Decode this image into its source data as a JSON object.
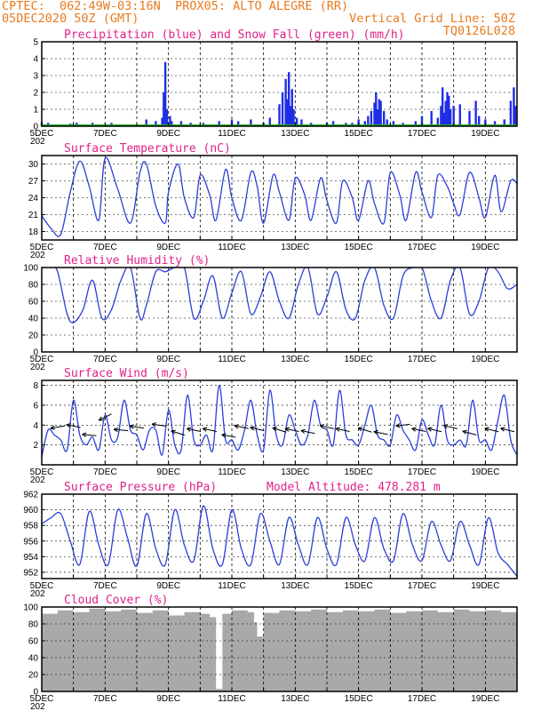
{
  "header": {
    "line1_left": "CPTEC:  062:49W-03:16N  PROX05: ALTO ALEGRE (RR)",
    "line2_left": "05DEC2020 50Z (GMT)",
    "line2_right": "Vertical Grid Line: 50Z",
    "line3_right": "TQ0126L028"
  },
  "colors": {
    "precip": "#1f2ee6",
    "snow": "#20b020",
    "line": "#2a3fd8",
    "cloud": "#a9a9a9",
    "title": "#e0218a",
    "header": "#e87a1e"
  },
  "x_axis": {
    "days": [
      5,
      20
    ],
    "labels": [
      "5DEC",
      "7DEC",
      "9DEC",
      "11DEC",
      "13DEC",
      "15DEC",
      "17DEC",
      "19DEC"
    ],
    "label_days": [
      5,
      7,
      9,
      11,
      13,
      15,
      17,
      19
    ],
    "year_stub": "202"
  },
  "chart_data": [
    {
      "id": "precip",
      "type": "bar",
      "title": "Precipitation (blue) and Snow Fall (green) (mm/h)",
      "ylim": [
        0,
        5
      ],
      "yticks": [
        "0",
        "1",
        "2",
        "3",
        "4",
        "5"
      ],
      "series": [
        {
          "name": "Precipitation (blue)",
          "x": [
            5.0,
            5.2,
            5.9,
            6.1,
            6.6,
            7.2,
            7.8,
            8.3,
            8.6,
            8.8,
            8.85,
            8.9,
            8.95,
            9.05,
            9.1,
            9.4,
            9.7,
            10.1,
            10.6,
            11.0,
            11.2,
            11.6,
            12.0,
            12.2,
            12.5,
            12.6,
            12.7,
            12.75,
            12.8,
            12.85,
            12.9,
            12.95,
            13.05,
            13.2,
            13.5,
            14.0,
            14.2,
            14.6,
            14.8,
            15.0,
            15.2,
            15.3,
            15.4,
            15.5,
            15.55,
            15.6,
            15.65,
            15.7,
            15.8,
            15.9,
            16.1,
            16.4,
            16.8,
            17.0,
            17.3,
            17.5,
            17.6,
            17.65,
            17.7,
            17.75,
            17.8,
            17.85,
            17.9,
            18.0,
            18.2,
            18.5,
            18.7,
            18.8,
            19.0,
            19.3,
            19.6,
            19.8,
            19.9,
            19.95
          ],
          "values": [
            0.25,
            0.2,
            0.15,
            0.2,
            0.2,
            0.2,
            0.1,
            0.4,
            0.3,
            0.5,
            2.0,
            3.8,
            1.0,
            0.6,
            0.3,
            0.3,
            0.2,
            0.2,
            0.3,
            0.4,
            0.3,
            0.4,
            0.2,
            0.5,
            1.3,
            2.0,
            2.8,
            1.6,
            3.2,
            1.2,
            2.2,
            1.0,
            0.5,
            0.4,
            0.2,
            0.2,
            0.3,
            0.2,
            0.2,
            0.4,
            0.3,
            0.6,
            0.9,
            1.4,
            2.0,
            1.0,
            1.6,
            1.5,
            0.9,
            0.4,
            0.3,
            0.2,
            0.3,
            0.6,
            0.9,
            0.5,
            1.2,
            2.3,
            0.8,
            1.5,
            2.0,
            1.8,
            1.0,
            1.2,
            1.3,
            0.9,
            1.5,
            0.6,
            0.4,
            0.3,
            0.4,
            1.5,
            2.3,
            1.2
          ]
        },
        {
          "name": "Snow Fall (green)",
          "x": [
            5,
            20
          ],
          "values": [
            0,
            0
          ]
        }
      ]
    },
    {
      "id": "temp",
      "type": "line",
      "title": "Surface Temperature (nC)",
      "ylim": [
        16.5,
        31.5
      ],
      "yticks": [
        "18",
        "21",
        "24",
        "27",
        "30"
      ],
      "ytick_values": [
        18,
        21,
        24,
        27,
        30
      ],
      "series": [
        {
          "name": "",
          "x": [
            5.0,
            5.3,
            5.6,
            5.9,
            6.2,
            6.5,
            6.8,
            7.0,
            7.4,
            7.8,
            8.1,
            8.3,
            8.6,
            8.9,
            9.0,
            9.3,
            9.5,
            9.8,
            10.0,
            10.3,
            10.5,
            10.8,
            11.0,
            11.3,
            11.6,
            11.8,
            12.0,
            12.3,
            12.5,
            12.8,
            13.0,
            13.3,
            13.5,
            13.8,
            14.0,
            14.3,
            14.5,
            14.8,
            15.0,
            15.3,
            15.5,
            15.8,
            16.0,
            16.3,
            16.5,
            16.8,
            17.0,
            17.3,
            17.5,
            17.8,
            18.0,
            18.2,
            18.5,
            18.8,
            19.0,
            19.3,
            19.5,
            19.8,
            20.0
          ],
          "values": [
            20.8,
            18.5,
            17.5,
            25.0,
            30.5,
            26.0,
            20.0,
            31.0,
            25.5,
            19.5,
            28.5,
            30.0,
            22.5,
            19.5,
            25.0,
            30.0,
            24.0,
            20.5,
            28.0,
            24.5,
            20.0,
            29.0,
            24.0,
            20.0,
            28.5,
            26.0,
            19.5,
            28.0,
            25.0,
            20.0,
            27.5,
            24.5,
            20.0,
            27.5,
            23.5,
            19.5,
            27.0,
            24.0,
            20.0,
            27.0,
            23.0,
            19.5,
            28.5,
            24.5,
            20.0,
            28.5,
            25.0,
            20.5,
            28.0,
            26.0,
            23.0,
            21.0,
            28.5,
            24.0,
            20.5,
            28.0,
            21.5,
            27.0,
            26.5
          ]
        }
      ]
    },
    {
      "id": "rh",
      "type": "line",
      "title": "Relative Humidity (%)",
      "ylim": [
        0,
        100
      ],
      "yticks": [
        "0",
        "20",
        "40",
        "60",
        "80",
        "100"
      ],
      "ytick_values": [
        0,
        20,
        40,
        60,
        80,
        100
      ],
      "series": [
        {
          "name": "",
          "x": [
            5.0,
            5.3,
            5.5,
            5.8,
            6.0,
            6.3,
            6.6,
            6.9,
            7.2,
            7.5,
            7.8,
            8.1,
            8.3,
            8.6,
            8.9,
            9.2,
            9.5,
            9.8,
            10.1,
            10.4,
            10.7,
            11.0,
            11.3,
            11.6,
            11.9,
            12.2,
            12.5,
            12.8,
            13.1,
            13.4,
            13.7,
            14.0,
            14.3,
            14.6,
            14.9,
            15.2,
            15.5,
            15.8,
            16.1,
            16.4,
            16.7,
            17.0,
            17.3,
            17.6,
            17.9,
            18.2,
            18.5,
            18.8,
            19.1,
            19.4,
            19.7,
            20.0
          ],
          "values": [
            100,
            100,
            95,
            45,
            35,
            50,
            85,
            40,
            50,
            85,
            100,
            40,
            55,
            95,
            95,
            100,
            100,
            40,
            60,
            90,
            40,
            70,
            95,
            45,
            65,
            95,
            60,
            40,
            80,
            100,
            45,
            65,
            95,
            50,
            40,
            85,
            100,
            55,
            40,
            90,
            100,
            100,
            60,
            40,
            85,
            100,
            45,
            60,
            100,
            95,
            75,
            80
          ]
        }
      ]
    },
    {
      "id": "wind",
      "type": "line",
      "title": "Surface Wind (m/s)",
      "ylim": [
        0,
        8.5
      ],
      "yticks": [
        "2",
        "4",
        "6",
        "8"
      ],
      "ytick_values": [
        2,
        4,
        6,
        8
      ],
      "series": [
        {
          "name": "",
          "x": [
            5.0,
            5.2,
            5.4,
            5.6,
            5.8,
            6.0,
            6.2,
            6.4,
            6.6,
            6.8,
            7.0,
            7.2,
            7.4,
            7.6,
            7.8,
            8.0,
            8.2,
            8.4,
            8.6,
            8.8,
            9.0,
            9.2,
            9.4,
            9.6,
            9.8,
            10.0,
            10.2,
            10.4,
            10.6,
            10.8,
            11.0,
            11.2,
            11.4,
            11.6,
            11.8,
            12.0,
            12.2,
            12.4,
            12.6,
            12.8,
            13.0,
            13.2,
            13.4,
            13.6,
            13.8,
            14.0,
            14.2,
            14.4,
            14.6,
            14.8,
            15.0,
            15.2,
            15.4,
            15.6,
            15.8,
            16.0,
            16.2,
            16.4,
            16.6,
            16.8,
            17.0,
            17.2,
            17.4,
            17.6,
            17.8,
            18.0,
            18.2,
            18.4,
            18.6,
            18.8,
            19.0,
            19.2,
            19.4,
            19.6,
            19.8,
            20.0
          ],
          "values": [
            0.8,
            3.5,
            3.0,
            2.5,
            1.5,
            6.5,
            3.0,
            2.0,
            2.8,
            1.5,
            5.0,
            2.5,
            2.8,
            6.5,
            3.5,
            3.0,
            1.5,
            3.5,
            3.5,
            1.0,
            5.5,
            2.0,
            1.5,
            7.0,
            2.5,
            2.0,
            3.0,
            1.5,
            8.0,
            2.5,
            2.5,
            1.5,
            3.5,
            6.5,
            3.0,
            1.5,
            7.5,
            3.0,
            2.0,
            5.0,
            3.5,
            2.0,
            3.0,
            6.5,
            4.0,
            3.5,
            2.0,
            7.5,
            3.0,
            2.5,
            2.0,
            4.0,
            6.0,
            3.0,
            2.5,
            2.0,
            5.0,
            3.5,
            2.5,
            1.5,
            4.5,
            3.0,
            2.0,
            6.0,
            2.5,
            2.0,
            2.5,
            2.0,
            6.5,
            2.5,
            2.5,
            1.5,
            4.5,
            7.0,
            2.5,
            1.0
          ]
        }
      ]
    },
    {
      "id": "pres",
      "type": "line",
      "title": "Surface Pressure (hPa)",
      "subtitle": "Model Altitude: 478.281 m",
      "ylim": [
        951.2,
        962
      ],
      "yticks": [
        "952",
        "954",
        "956",
        "958",
        "960",
        "962"
      ],
      "ytick_values": [
        952,
        954,
        956,
        958,
        960,
        962
      ],
      "series": [
        {
          "name": "",
          "x": [
            5.0,
            5.3,
            5.6,
            5.9,
            6.2,
            6.5,
            6.8,
            7.1,
            7.4,
            7.7,
            8.0,
            8.3,
            8.6,
            8.9,
            9.2,
            9.5,
            9.8,
            10.1,
            10.4,
            10.7,
            11.0,
            11.3,
            11.6,
            11.9,
            12.2,
            12.5,
            12.8,
            13.1,
            13.4,
            13.7,
            14.0,
            14.3,
            14.6,
            14.9,
            15.2,
            15.5,
            15.8,
            16.1,
            16.4,
            16.7,
            17.0,
            17.3,
            17.6,
            17.9,
            18.2,
            18.5,
            18.8,
            19.1,
            19.4,
            19.7,
            20.0
          ],
          "values": [
            958.2,
            959.0,
            959.5,
            956.0,
            953.0,
            959.8,
            955.5,
            953.0,
            960.0,
            956.5,
            952.8,
            959.5,
            955.0,
            953.0,
            960.0,
            955.5,
            953.5,
            960.5,
            955.0,
            953.0,
            960.0,
            955.0,
            953.0,
            959.5,
            956.0,
            953.0,
            959.0,
            955.5,
            953.0,
            959.0,
            955.0,
            953.0,
            959.0,
            955.5,
            953.5,
            959.0,
            955.0,
            953.5,
            959.5,
            955.5,
            953.5,
            958.5,
            955.5,
            953.5,
            958.5,
            955.5,
            953.0,
            959.0,
            954.5,
            953.0,
            951.5
          ]
        }
      ]
    },
    {
      "id": "cloud",
      "type": "bar",
      "title": "Cloud Cover (%)",
      "ylim": [
        0,
        100
      ],
      "yticks": [
        "0",
        "20",
        "40",
        "60",
        "80",
        "100"
      ],
      "ytick_values": [
        0,
        20,
        40,
        60,
        80,
        100
      ],
      "series": [
        {
          "name": "",
          "x": [
            5.0,
            5.5,
            6.0,
            6.5,
            7.0,
            7.5,
            8.0,
            8.5,
            9.0,
            9.5,
            10.0,
            10.3,
            10.5,
            10.7,
            11.0,
            11.5,
            11.7,
            11.8,
            12.0,
            12.5,
            13.0,
            13.5,
            14.0,
            14.5,
            15.0,
            15.5,
            16.0,
            16.5,
            17.0,
            17.5,
            18.0,
            18.5,
            19.0,
            19.5,
            20.0
          ],
          "values": [
            92,
            96,
            94,
            98,
            95,
            97,
            93,
            96,
            90,
            94,
            92,
            88,
            3,
            92,
            96,
            94,
            82,
            65,
            93,
            96,
            95,
            97,
            94,
            96,
            95,
            97,
            93,
            95,
            96,
            94,
            97,
            95,
            96,
            94,
            97
          ]
        }
      ]
    }
  ]
}
